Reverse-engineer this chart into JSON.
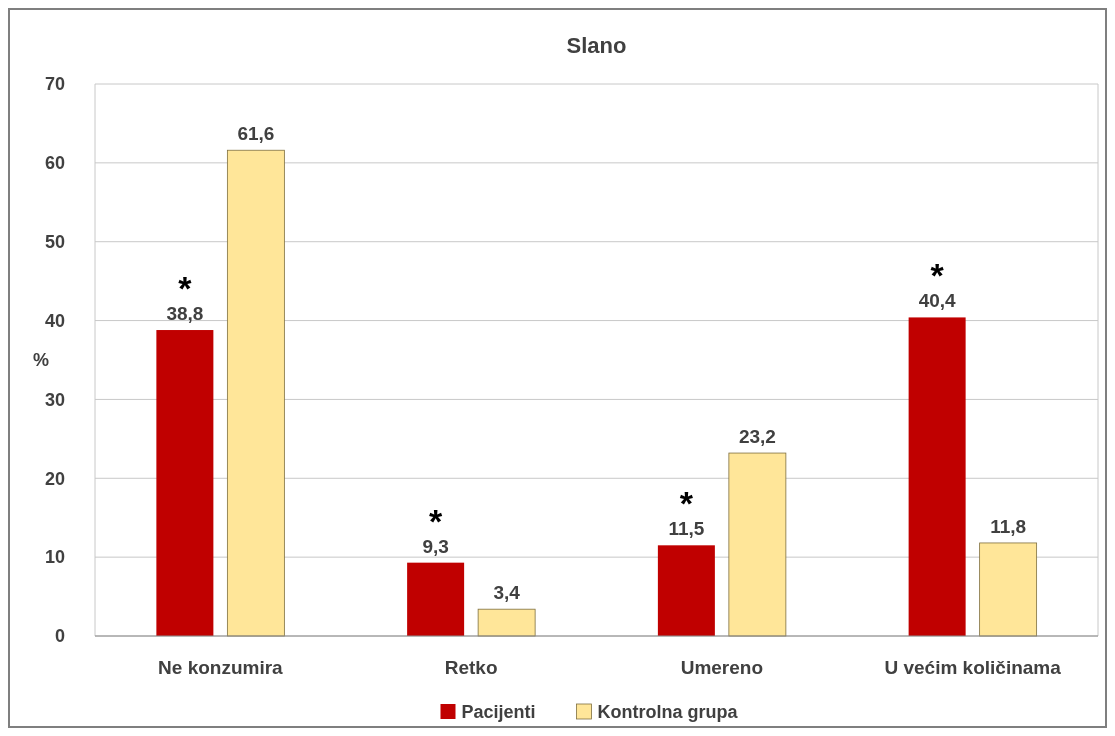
{
  "chart_data": {
    "type": "bar",
    "title": "Slano",
    "ylabel": "%",
    "categories": [
      "Ne konzumira",
      "Retko",
      "Umereno",
      "U većim količinama"
    ],
    "series": [
      {
        "name": "Pacijenti",
        "color": "#c00000",
        "values": [
          38.8,
          9.3,
          11.5,
          40.4
        ],
        "value_labels": [
          "38,8",
          "9,3",
          "11,5",
          "40,4"
        ]
      },
      {
        "name": "Kontrolna grupa",
        "color": "#ffe699",
        "values": [
          61.6,
          3.4,
          23.2,
          11.8
        ],
        "value_labels": [
          "61,6",
          "3,4",
          "23,2",
          "11,8"
        ]
      }
    ],
    "ylim": [
      0,
      70
    ],
    "yticks": [
      0,
      10,
      20,
      30,
      40,
      50,
      60,
      70
    ],
    "grid": "y",
    "legend": "bottom",
    "annotations": [
      "*",
      "*",
      "*",
      "*"
    ]
  }
}
